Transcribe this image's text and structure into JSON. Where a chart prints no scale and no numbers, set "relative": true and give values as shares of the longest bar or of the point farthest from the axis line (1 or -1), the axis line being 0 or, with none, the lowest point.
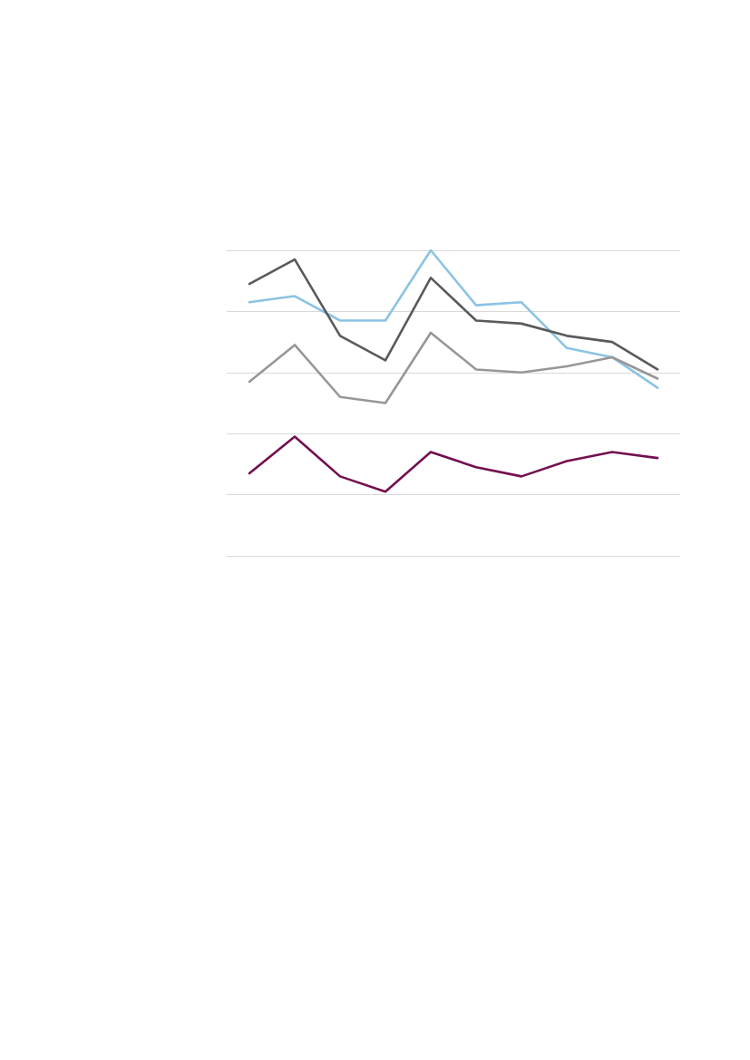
{
  "chart_data": {
    "type": "line",
    "relative": true,
    "grid": "y",
    "marker": "none",
    "line_style": "solid",
    "categories": [
      null,
      null,
      null,
      null,
      null,
      null,
      null,
      null,
      null,
      null
    ],
    "series": [
      {
        "color": "#8cc3e3",
        "values": [
          0.83,
          0.85,
          0.77,
          0.77,
          1,
          0.82,
          0.83,
          0.68,
          0.65,
          0.55
        ]
      },
      {
        "color": "#5a5a5a",
        "values": [
          0.89,
          0.97,
          0.72,
          0.64,
          0.91,
          0.77,
          0.76,
          0.72,
          0.7,
          0.61
        ]
      },
      {
        "color": "#979797",
        "values": [
          0.57,
          0.69,
          0.52,
          0.5,
          0.73,
          0.61,
          0.6,
          0.62,
          0.65,
          0.58
        ]
      },
      {
        "color": "#731050",
        "values": [
          0.27,
          0.39,
          0.26,
          0.21,
          0.34,
          0.29,
          0.26,
          0.31,
          0.34,
          0.32
        ]
      }
    ]
  }
}
